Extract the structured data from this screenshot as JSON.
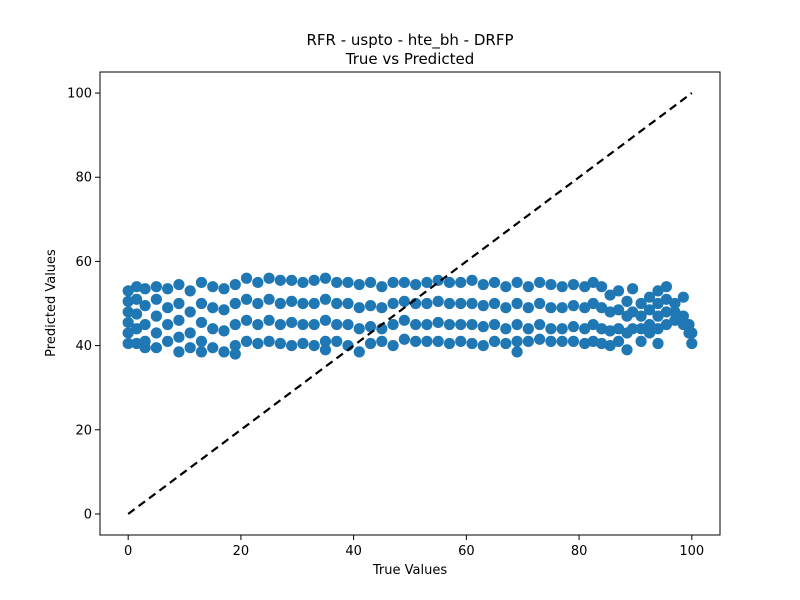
{
  "chart_data": {
    "type": "scatter",
    "title": "RFR - uspto - hte_bh - DRFP",
    "subtitle": "True vs Predicted",
    "xlabel": "True Values",
    "ylabel": "Predicted Values",
    "xlim": [
      -5,
      105
    ],
    "ylim": [
      -5,
      105
    ],
    "xticks": [
      0,
      20,
      40,
      60,
      80,
      100
    ],
    "yticks": [
      0,
      20,
      40,
      60,
      80,
      100
    ],
    "grid": false,
    "point_color": "#1f77b4",
    "reference_line": {
      "x": [
        0,
        100
      ],
      "y": [
        0,
        100
      ],
      "color": "#000000",
      "style": "dashed"
    },
    "series": [
      {
        "points": [
          [
            0,
            53
          ],
          [
            0,
            50.5
          ],
          [
            0,
            48
          ],
          [
            0,
            45.5
          ],
          [
            0,
            43
          ],
          [
            0,
            40.5
          ],
          [
            1.5,
            54
          ],
          [
            1.5,
            51
          ],
          [
            1.5,
            47.5
          ],
          [
            1.5,
            44
          ],
          [
            1.5,
            40.5
          ],
          [
            3,
            53.5
          ],
          [
            3,
            49.5
          ],
          [
            3,
            45
          ],
          [
            3,
            41
          ],
          [
            3,
            39.5
          ],
          [
            5,
            54
          ],
          [
            5,
            51
          ],
          [
            5,
            47
          ],
          [
            5,
            43
          ],
          [
            5,
            39.5
          ],
          [
            7,
            53.5
          ],
          [
            7,
            49
          ],
          [
            7,
            45
          ],
          [
            7,
            41
          ],
          [
            9,
            54.5
          ],
          [
            9,
            50
          ],
          [
            9,
            46
          ],
          [
            9,
            42
          ],
          [
            9,
            38.5
          ],
          [
            11,
            53
          ],
          [
            11,
            48
          ],
          [
            11,
            43
          ],
          [
            11,
            39.5
          ],
          [
            13,
            55
          ],
          [
            13,
            50
          ],
          [
            13,
            45.5
          ],
          [
            13,
            41
          ],
          [
            13,
            38.5
          ],
          [
            15,
            54
          ],
          [
            15,
            49
          ],
          [
            15,
            44
          ],
          [
            15,
            39.5
          ],
          [
            17,
            53.5
          ],
          [
            17,
            48.5
          ],
          [
            17,
            43.5
          ],
          [
            17,
            38.5
          ],
          [
            19,
            54.5
          ],
          [
            19,
            50
          ],
          [
            19,
            45
          ],
          [
            19,
            40
          ],
          [
            19,
            38
          ],
          [
            21,
            56
          ],
          [
            21,
            51
          ],
          [
            21,
            46
          ],
          [
            21,
            41
          ],
          [
            23,
            55
          ],
          [
            23,
            50
          ],
          [
            23,
            45
          ],
          [
            23,
            40.5
          ],
          [
            25,
            56
          ],
          [
            25,
            51
          ],
          [
            25,
            46
          ],
          [
            25,
            41
          ],
          [
            27,
            55.5
          ],
          [
            27,
            50
          ],
          [
            27,
            45
          ],
          [
            27,
            40.5
          ],
          [
            29,
            55.5
          ],
          [
            29,
            50.5
          ],
          [
            29,
            45.5
          ],
          [
            29,
            40
          ],
          [
            31,
            55
          ],
          [
            31,
            50
          ],
          [
            31,
            45
          ],
          [
            31,
            40.5
          ],
          [
            33,
            55.5
          ],
          [
            33,
            50
          ],
          [
            33,
            45
          ],
          [
            33,
            40
          ],
          [
            35,
            56
          ],
          [
            35,
            51
          ],
          [
            35,
            46
          ],
          [
            35,
            41
          ],
          [
            35,
            39
          ],
          [
            37,
            55
          ],
          [
            37,
            50
          ],
          [
            37,
            45
          ],
          [
            37,
            41
          ],
          [
            39,
            55
          ],
          [
            39,
            50
          ],
          [
            39,
            45
          ],
          [
            39,
            40
          ],
          [
            41,
            54.5
          ],
          [
            41,
            49
          ],
          [
            41,
            44
          ],
          [
            41,
            38.5
          ],
          [
            43,
            55
          ],
          [
            43,
            49.5
          ],
          [
            43,
            44.5
          ],
          [
            43,
            40.5
          ],
          [
            45,
            54
          ],
          [
            45,
            49
          ],
          [
            45,
            44
          ],
          [
            45,
            41
          ],
          [
            47,
            55
          ],
          [
            47,
            50
          ],
          [
            47,
            45
          ],
          [
            47,
            40
          ],
          [
            49,
            55
          ],
          [
            49,
            50.5
          ],
          [
            49,
            46
          ],
          [
            49,
            41.5
          ],
          [
            51,
            54.5
          ],
          [
            51,
            50
          ],
          [
            51,
            45
          ],
          [
            51,
            41
          ],
          [
            53,
            55
          ],
          [
            53,
            50
          ],
          [
            53,
            45
          ],
          [
            53,
            41
          ],
          [
            55,
            55.5
          ],
          [
            55,
            50.5
          ],
          [
            55,
            45.5
          ],
          [
            55,
            41
          ],
          [
            57,
            55
          ],
          [
            57,
            50
          ],
          [
            57,
            45
          ],
          [
            57,
            40.5
          ],
          [
            59,
            55
          ],
          [
            59,
            50
          ],
          [
            59,
            45
          ],
          [
            59,
            41
          ],
          [
            61,
            55.5
          ],
          [
            61,
            50
          ],
          [
            61,
            45
          ],
          [
            61,
            40.5
          ],
          [
            63,
            54.5
          ],
          [
            63,
            49.5
          ],
          [
            63,
            44.5
          ],
          [
            63,
            40
          ],
          [
            65,
            55
          ],
          [
            65,
            50
          ],
          [
            65,
            45
          ],
          [
            65,
            41
          ],
          [
            67,
            54
          ],
          [
            67,
            49
          ],
          [
            67,
            44
          ],
          [
            67,
            40.5
          ],
          [
            69,
            55
          ],
          [
            69,
            50
          ],
          [
            69,
            45
          ],
          [
            69,
            41
          ],
          [
            69,
            38.5
          ],
          [
            71,
            54
          ],
          [
            71,
            49
          ],
          [
            71,
            44
          ],
          [
            71,
            41
          ],
          [
            73,
            55
          ],
          [
            73,
            50
          ],
          [
            73,
            45
          ],
          [
            73,
            41.5
          ],
          [
            75,
            54.5
          ],
          [
            75,
            49
          ],
          [
            75,
            44
          ],
          [
            75,
            41
          ],
          [
            77,
            54
          ],
          [
            77,
            49
          ],
          [
            77,
            44
          ],
          [
            77,
            41
          ],
          [
            79,
            54.5
          ],
          [
            79,
            49.5
          ],
          [
            79,
            44.5
          ],
          [
            79,
            41
          ],
          [
            81,
            54
          ],
          [
            81,
            49
          ],
          [
            81,
            44
          ],
          [
            81,
            40.5
          ],
          [
            82.5,
            55
          ],
          [
            82.5,
            50
          ],
          [
            82.5,
            45
          ],
          [
            82.5,
            41
          ],
          [
            84,
            54
          ],
          [
            84,
            49
          ],
          [
            84,
            44
          ],
          [
            84,
            40.5
          ],
          [
            85.5,
            52
          ],
          [
            85.5,
            48
          ],
          [
            85.5,
            43.5
          ],
          [
            85.5,
            40
          ],
          [
            87,
            53
          ],
          [
            87,
            48.5
          ],
          [
            87,
            44
          ],
          [
            87,
            41
          ],
          [
            88.5,
            50.5
          ],
          [
            88.5,
            47
          ],
          [
            88.5,
            43
          ],
          [
            88.5,
            39
          ],
          [
            89.5,
            53.5
          ],
          [
            89.5,
            48
          ],
          [
            89.5,
            44
          ],
          [
            91,
            50
          ],
          [
            91,
            47
          ],
          [
            91,
            44
          ],
          [
            91,
            41
          ],
          [
            92.5,
            51.5
          ],
          [
            92.5,
            48.5
          ],
          [
            92.5,
            45
          ],
          [
            92.5,
            43
          ],
          [
            94,
            53
          ],
          [
            94,
            50
          ],
          [
            94,
            47
          ],
          [
            94,
            44
          ],
          [
            94,
            40.5
          ],
          [
            95.5,
            54
          ],
          [
            95.5,
            51
          ],
          [
            95.5,
            48
          ],
          [
            95.5,
            45
          ],
          [
            97,
            50
          ],
          [
            97,
            48
          ],
          [
            97,
            46
          ],
          [
            98.5,
            51.5
          ],
          [
            98.5,
            47
          ],
          [
            98.5,
            45
          ],
          [
            99.5,
            45
          ],
          [
            99.5,
            43
          ],
          [
            100,
            40.5
          ],
          [
            100,
            43
          ]
        ]
      }
    ]
  }
}
